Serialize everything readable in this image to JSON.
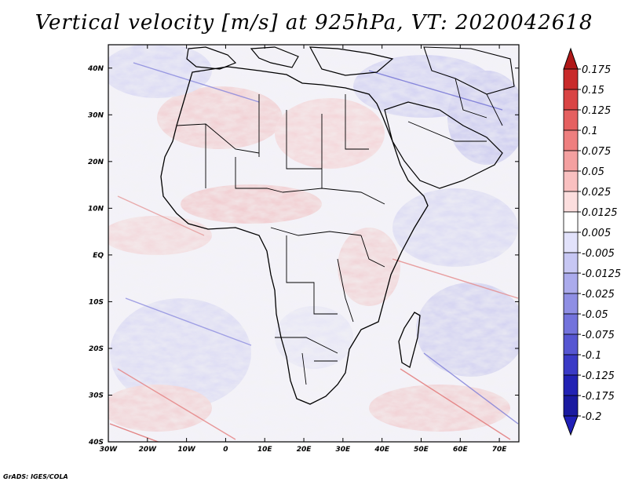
{
  "title": "Vertical velocity [m/s] at 925hPa, VT: 2020042618",
  "credit": "GrADS: IGES/COLA",
  "map": {
    "region": "Africa",
    "lon_range": [
      -30,
      75
    ],
    "lat_range": [
      -40,
      45
    ],
    "lat_ticks": [
      "40N",
      "30N",
      "20N",
      "10N",
      "EQ",
      "10S",
      "20S",
      "30S",
      "40S"
    ],
    "lon_ticks": [
      "30W",
      "20W",
      "10W",
      "0",
      "10E",
      "20E",
      "30E",
      "40E",
      "50E",
      "60E",
      "70E"
    ]
  },
  "colorbar": {
    "labels": [
      "0.175",
      "0.15",
      "0.125",
      "0.1",
      "0.075",
      "0.05",
      "0.025",
      "0.0125",
      "0.005",
      "-0.005",
      "-0.0125",
      "-0.025",
      "-0.05",
      "-0.075",
      "-0.1",
      "-0.125",
      "-0.175",
      "-0.2"
    ],
    "colors": [
      "#b01818",
      "#c92a2a",
      "#d94444",
      "#e56060",
      "#ee7f7f",
      "#f4a0a0",
      "#f9c0c0",
      "#fcdede",
      "#ffffff",
      "#e2e2fb",
      "#c7c7f3",
      "#ababec",
      "#8f8fe4",
      "#7373dc",
      "#5656d2",
      "#3a3ac6",
      "#2222b4",
      "#1a1aa0",
      "#2020b8"
    ]
  }
}
